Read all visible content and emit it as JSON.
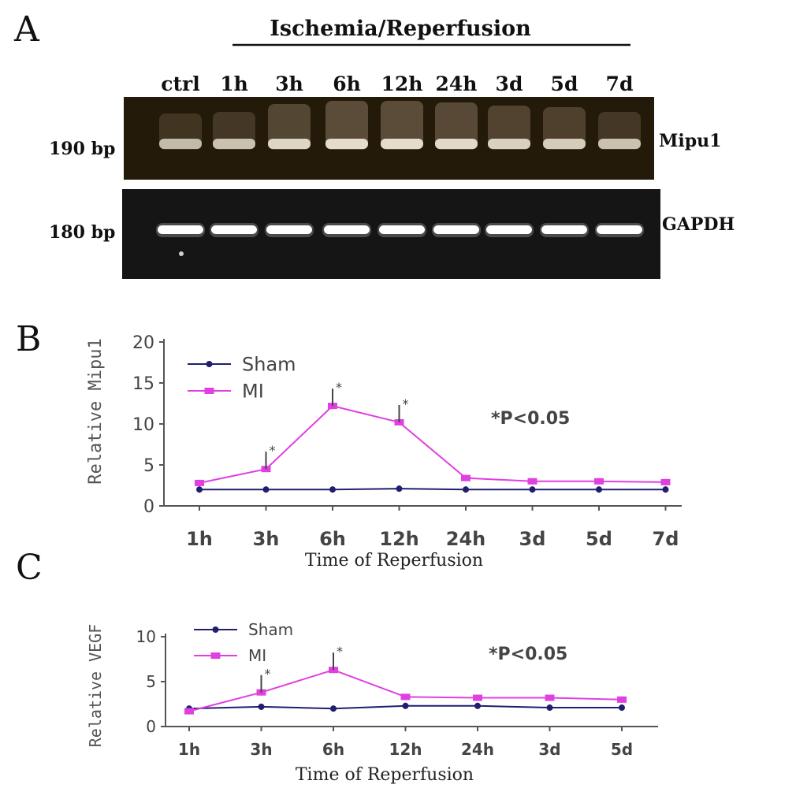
{
  "panel_a": {
    "letter": "A",
    "header": "Ischemia/Reperfusion",
    "lanes": [
      "ctrl",
      "1h",
      "3h",
      "6h",
      "12h",
      "24h",
      "3d",
      "5d",
      "7d"
    ],
    "upper_gel": {
      "size_label": "190 bp",
      "gene_label": "Mipu1",
      "band_intensity": [
        0.45,
        0.5,
        0.75,
        0.85,
        0.85,
        0.8,
        0.7,
        0.65,
        0.5
      ]
    },
    "lower_gel": {
      "size_label": "180 bp",
      "gene_label": "GAPDH",
      "band_intensity": [
        1,
        1,
        1,
        1,
        1,
        1,
        1,
        1,
        1
      ]
    }
  },
  "chart_data": [
    {
      "type": "line",
      "panel_letter": "B",
      "categories": [
        "1h",
        "3h",
        "6h",
        "12h",
        "24h",
        "3d",
        "5d",
        "7d"
      ],
      "series": [
        {
          "name": "Sham",
          "values": [
            2.0,
            2.0,
            2.0,
            2.1,
            2.0,
            2.0,
            2.0,
            2.0
          ],
          "color": "#1f1f6e",
          "marker": "circle"
        },
        {
          "name": "MI",
          "values": [
            2.8,
            4.5,
            12.2,
            10.2,
            3.4,
            3.0,
            3.0,
            2.9
          ],
          "color": "#e040e0",
          "marker": "square"
        }
      ],
      "significant": [
        "3h",
        "6h",
        "12h"
      ],
      "annotation": "*P<0.05",
      "xlabel": "Time of Reperfusion",
      "ylabel": "Relative Mipu1",
      "ylim": [
        0,
        20
      ],
      "yticks": [
        0,
        5,
        10,
        15,
        20
      ],
      "legend": "top-left"
    },
    {
      "type": "line",
      "panel_letter": "C",
      "categories": [
        "1h",
        "3h",
        "6h",
        "12h",
        "24h",
        "3d",
        "5d"
      ],
      "series": [
        {
          "name": "Sham",
          "values": [
            2.0,
            2.2,
            2.0,
            2.3,
            2.3,
            2.1,
            2.1
          ],
          "color": "#1f1f6e",
          "marker": "circle"
        },
        {
          "name": "MI",
          "values": [
            1.7,
            3.8,
            6.3,
            3.3,
            3.2,
            3.2,
            3.0
          ],
          "color": "#e040e0",
          "marker": "square"
        }
      ],
      "significant": [
        "3h",
        "6h"
      ],
      "annotation": "*P<0.05",
      "xlabel": "Time of Reperfusion",
      "ylabel": "Relative VEGF",
      "ylim": [
        0,
        10
      ],
      "yticks": [
        0,
        5,
        10
      ],
      "legend": "top-left"
    }
  ]
}
